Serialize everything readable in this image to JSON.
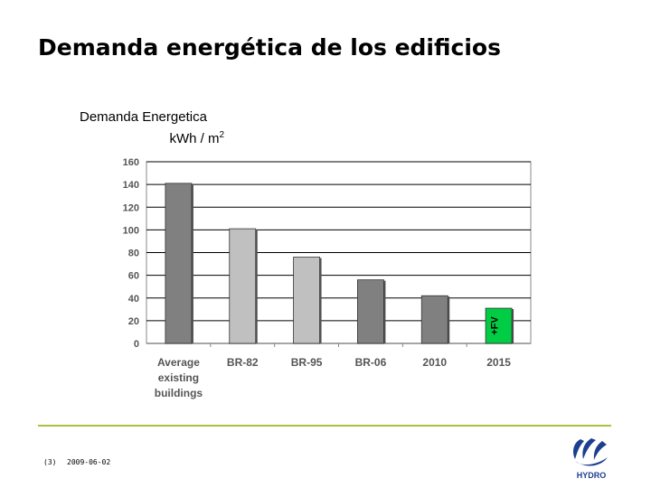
{
  "slide": {
    "title": "Demanda energética de los edificios",
    "page_number": "(3)",
    "date": "2009-06-02",
    "logo_text": "HYDRO"
  },
  "chart_title": {
    "line1": "Demanda Energetica",
    "unit_base": "k",
    "unit": "Wh / m",
    "unit_sup": "2"
  },
  "chart_data": {
    "type": "bar",
    "title": "Demanda Energetica kWh / m2",
    "xlabel": "",
    "ylabel": "",
    "ylim": [
      0,
      160
    ],
    "yticks": [
      0,
      20,
      40,
      60,
      80,
      100,
      120,
      140,
      160
    ],
    "grid": true,
    "categories": [
      "Average existing buildings",
      "BR-82",
      "BR-95",
      "BR-06",
      "2010",
      "2015"
    ],
    "category_lines": [
      [
        "Average",
        "existing",
        "buildings"
      ],
      [
        "BR-82"
      ],
      [
        "BR-95"
      ],
      [
        "BR-06"
      ],
      [
        "2010"
      ],
      [
        "2015"
      ]
    ],
    "values": [
      141,
      101,
      76,
      56,
      42,
      31
    ],
    "bar_colors": [
      "#808080",
      "#c0c0c0",
      "#c0c0c0",
      "#808080",
      "#808080",
      "#00cc44"
    ],
    "annotation": "+FV"
  },
  "colors": {
    "accent_line": "#a9c23f",
    "logo_blue": "#1c3f8f"
  }
}
